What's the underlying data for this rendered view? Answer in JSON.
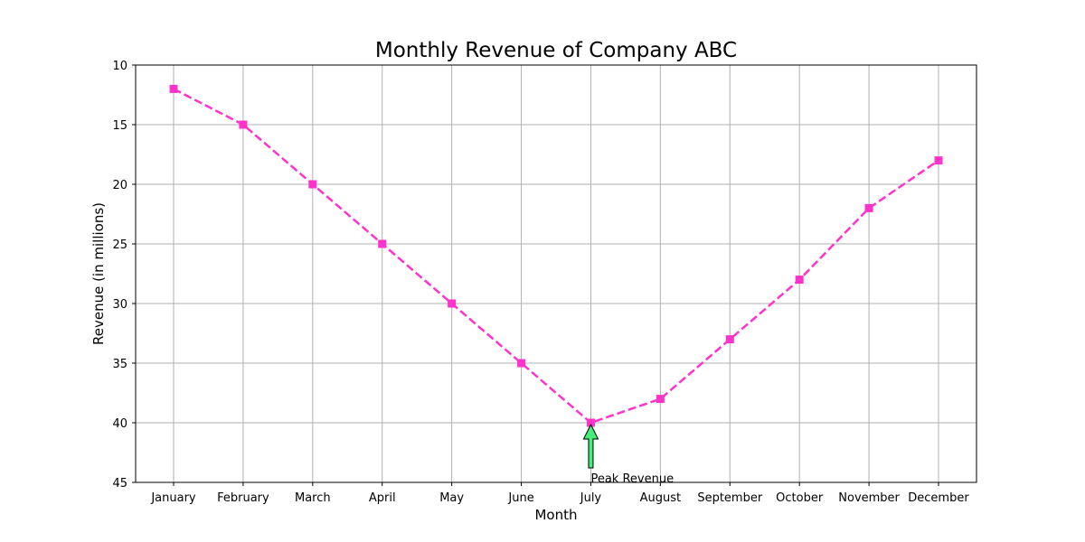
{
  "chart_data": {
    "type": "line",
    "title": "Monthly Revenue of Company ABC",
    "xlabel": "Month",
    "ylabel": "Revenue (in millions)",
    "categories": [
      "January",
      "February",
      "March",
      "April",
      "May",
      "June",
      "July",
      "August",
      "September",
      "October",
      "November",
      "December"
    ],
    "series": [
      {
        "values": [
          12,
          15,
          20,
          25,
          30,
          35,
          40,
          38,
          33,
          28,
          22,
          18
        ]
      }
    ],
    "ylim": [
      10,
      45
    ],
    "y_axis_inverted": true,
    "yticks": [
      10,
      15,
      20,
      25,
      30,
      35,
      40,
      45
    ],
    "grid": true,
    "line_style": "dashed",
    "marker": "square",
    "colors": {
      "series": "#ff33cc",
      "arrow_fill": "#44ee77",
      "grid": "#b0b0b0"
    },
    "annotations": [
      {
        "text": "Peak Revenue",
        "category": "July",
        "value": 40,
        "icon": "arrow-up-icon"
      }
    ]
  }
}
